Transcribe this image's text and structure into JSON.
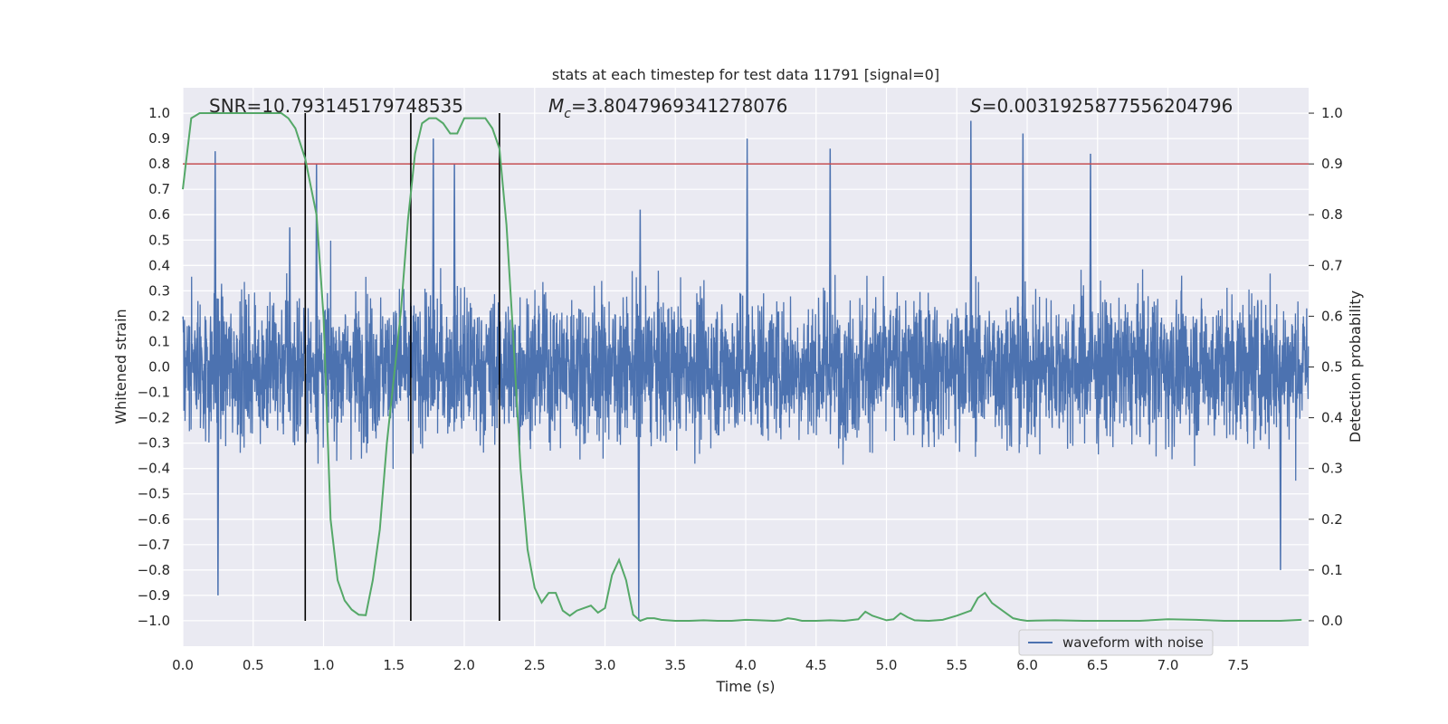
{
  "chart_data": {
    "type": "line",
    "title": "stats at each timestep for test data 11791 [signal=0]",
    "xlabel": "Time (s)",
    "ylabel": "Whitened strain",
    "y2label": "Detection probability",
    "xlim": [
      0.0,
      8.0
    ],
    "ylim": [
      -1.1,
      1.1
    ],
    "y2lim": [
      -0.05,
      1.05
    ],
    "x_ticks": [
      0.0,
      0.5,
      1.0,
      1.5,
      2.0,
      2.5,
      3.0,
      3.5,
      4.0,
      4.5,
      5.0,
      5.5,
      6.0,
      6.5,
      7.0,
      7.5
    ],
    "y_ticks": [
      -1.0,
      -0.9,
      -0.8,
      -0.7,
      -0.6,
      -0.5,
      -0.4,
      -0.3,
      -0.2,
      -0.1,
      0.0,
      0.1,
      0.2,
      0.3,
      0.4,
      0.5,
      0.6,
      0.7,
      0.8,
      0.9,
      1.0
    ],
    "y2_ticks": [
      0.0,
      0.1,
      0.2,
      0.3,
      0.4,
      0.5,
      0.6,
      0.7,
      0.8,
      0.9,
      1.0
    ],
    "grid": true,
    "annotations": {
      "snr": "SNR=10.793145179748535",
      "mc_symbol": "M",
      "mc_sub": "c",
      "mc_value": "=3.8047969341278076",
      "s_symbol": "S",
      "s_value": "=0.0031925877556204796"
    },
    "threshold_line": {
      "axis": "y2",
      "value": 0.9,
      "color": "#c44e52"
    },
    "vertical_lines": [
      0.87,
      1.62,
      2.25
    ],
    "legend": {
      "label": "waveform with noise",
      "location": "lower-right"
    },
    "series": [
      {
        "name": "waveform with noise",
        "axis": "y",
        "color": "#4c72b0",
        "style": "dense noise, |peak| approx 1.0, time span 0 to 8 s",
        "peak_points": [
          {
            "x": 0.23,
            "y": 0.85
          },
          {
            "x": 0.25,
            "y": -0.9
          },
          {
            "x": 0.76,
            "y": 0.55
          },
          {
            "x": 0.95,
            "y": 0.8
          },
          {
            "x": 1.78,
            "y": 0.9
          },
          {
            "x": 1.93,
            "y": 0.8
          },
          {
            "x": 3.24,
            "y": -1.0
          },
          {
            "x": 3.25,
            "y": 0.62
          },
          {
            "x": 4.01,
            "y": 0.9
          },
          {
            "x": 4.6,
            "y": 0.86
          },
          {
            "x": 5.6,
            "y": 0.97
          },
          {
            "x": 5.97,
            "y": 0.92
          },
          {
            "x": 6.45,
            "y": 0.84
          },
          {
            "x": 7.8,
            "y": -0.8
          }
        ]
      },
      {
        "name": "detection probability",
        "axis": "y2",
        "color": "#55a868",
        "x": [
          0.0,
          0.03,
          0.06,
          0.12,
          0.2,
          0.3,
          0.4,
          0.5,
          0.6,
          0.7,
          0.75,
          0.8,
          0.87,
          0.95,
          1.0,
          1.05,
          1.1,
          1.15,
          1.2,
          1.25,
          1.3,
          1.35,
          1.4,
          1.45,
          1.5,
          1.55,
          1.6,
          1.65,
          1.7,
          1.75,
          1.8,
          1.85,
          1.9,
          1.95,
          2.0,
          2.05,
          2.1,
          2.15,
          2.2,
          2.25,
          2.3,
          2.35,
          2.4,
          2.45,
          2.5,
          2.55,
          2.6,
          2.65,
          2.7,
          2.75,
          2.8,
          2.85,
          2.9,
          2.95,
          3.0,
          3.05,
          3.1,
          3.15,
          3.2,
          3.25,
          3.3,
          3.35,
          3.4,
          3.5,
          3.6,
          3.7,
          3.8,
          3.9,
          4.0,
          4.1,
          4.2,
          4.25,
          4.3,
          4.35,
          4.4,
          4.5,
          4.6,
          4.7,
          4.8,
          4.85,
          4.9,
          5.0,
          5.05,
          5.1,
          5.15,
          5.2,
          5.3,
          5.4,
          5.5,
          5.6,
          5.65,
          5.7,
          5.75,
          5.8,
          5.9,
          5.95,
          6.0,
          6.2,
          6.4,
          6.6,
          6.8,
          7.0,
          7.2,
          7.4,
          7.6,
          7.8,
          7.95
        ],
        "y": [
          0.85,
          0.92,
          0.99,
          1.0,
          1.0,
          1.0,
          1.0,
          1.0,
          1.0,
          1.0,
          0.99,
          0.97,
          0.91,
          0.8,
          0.6,
          0.2,
          0.08,
          0.04,
          0.022,
          0.012,
          0.011,
          0.08,
          0.18,
          0.35,
          0.48,
          0.61,
          0.79,
          0.92,
          0.98,
          0.99,
          0.99,
          0.98,
          0.96,
          0.96,
          0.99,
          0.99,
          0.99,
          0.99,
          0.97,
          0.93,
          0.78,
          0.55,
          0.3,
          0.14,
          0.065,
          0.036,
          0.055,
          0.055,
          0.02,
          0.01,
          0.02,
          0.025,
          0.03,
          0.016,
          0.025,
          0.09,
          0.12,
          0.08,
          0.012,
          0.0,
          0.005,
          0.005,
          0.002,
          0.0,
          0.0,
          0.001,
          0.0,
          0.0,
          0.002,
          0.001,
          0.0,
          0.001,
          0.005,
          0.003,
          0.0,
          0.0,
          0.001,
          0.0,
          0.003,
          0.018,
          0.01,
          0.001,
          0.003,
          0.015,
          0.007,
          0.001,
          0.0,
          0.002,
          0.01,
          0.02,
          0.045,
          0.055,
          0.035,
          0.025,
          0.005,
          0.002,
          0.0,
          0.001,
          0.0,
          0.0,
          0.0,
          0.003,
          0.002,
          0.0,
          0.0,
          0.0,
          0.002
        ]
      }
    ]
  }
}
